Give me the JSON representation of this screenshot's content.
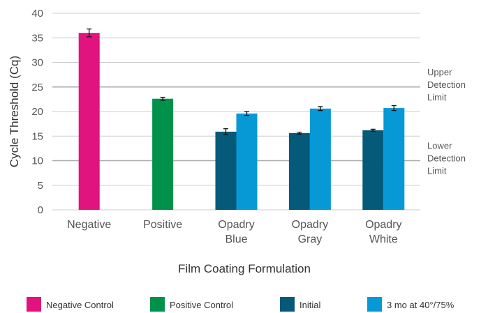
{
  "chart_data": {
    "type": "bar",
    "xlabel": "Film Coating Formulation",
    "ylabel": "Cycle Threshold (Cq)",
    "ylim": [
      0,
      40
    ],
    "yticks": [
      0,
      5,
      10,
      15,
      20,
      25,
      30,
      35,
      40
    ],
    "grid": true,
    "categories": [
      [
        "Negative"
      ],
      [
        "Positive"
      ],
      [
        "Opadry",
        "Blue"
      ],
      [
        "Opadry",
        "Gray"
      ],
      [
        "Opadry",
        "White"
      ]
    ],
    "series": [
      {
        "name": "Negative Control",
        "color": "#E0137F",
        "values": [
          36.0,
          null,
          null,
          null,
          null
        ],
        "errors": [
          0.8,
          null,
          null,
          null,
          null
        ]
      },
      {
        "name": "Positive Control",
        "color": "#00924A",
        "values": [
          null,
          22.6,
          null,
          null,
          null
        ],
        "errors": [
          null,
          0.3,
          null,
          null,
          null
        ]
      },
      {
        "name": "Initial",
        "color": "#045A78",
        "values": [
          null,
          null,
          15.9,
          15.6,
          16.2
        ],
        "errors": [
          null,
          null,
          0.6,
          0.2,
          0.2
        ]
      },
      {
        "name": "3 mo at 40°/75%",
        "color": "#0799D6",
        "values": [
          null,
          null,
          19.6,
          20.6,
          20.7
        ],
        "errors": [
          null,
          null,
          0.4,
          0.4,
          0.5
        ]
      }
    ],
    "reference_lines": [
      {
        "y": 25,
        "label": [
          "Upper",
          "Detection",
          "Limit"
        ]
      },
      {
        "y": 10,
        "label": [
          "Lower",
          "Detection",
          "Limit"
        ]
      }
    ],
    "legend_position": "bottom"
  }
}
